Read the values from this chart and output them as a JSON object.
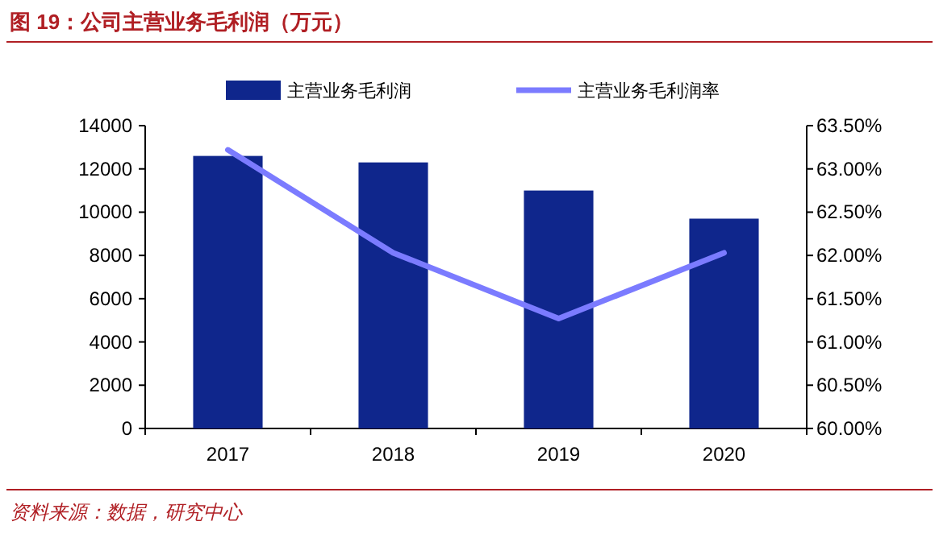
{
  "chart_data": {
    "type": "bar",
    "title": "图 19：公司主营业务毛利润（万元）",
    "categories": [
      "2017",
      "2018",
      "2019",
      "2020"
    ],
    "series": [
      {
        "name": "主营业务毛利润",
        "color": "#0f268c",
        "values": [
          12600,
          12300,
          11000,
          9700
        ]
      },
      {
        "name": "主营业务毛利润率",
        "type": "line",
        "axis": "y2",
        "color": "#7b7bff",
        "values": [
          63.22,
          62.03,
          61.27,
          62.03
        ]
      }
    ],
    "ylim": [
      0,
      14000
    ],
    "yticks": [
      0,
      2000,
      4000,
      6000,
      8000,
      10000,
      12000,
      14000
    ],
    "y2lim": [
      60,
      63.5
    ],
    "y2ticks": [
      {
        "value": 60,
        "label": "60.00%"
      },
      {
        "value": 60.5,
        "label": "60.50%"
      },
      {
        "value": 61,
        "label": "61.00%"
      },
      {
        "value": 61.5,
        "label": "61.50%"
      },
      {
        "value": 62,
        "label": "62.00%"
      },
      {
        "value": 62.5,
        "label": "62.50%"
      },
      {
        "value": 63,
        "label": "63.00%"
      },
      {
        "value": 63.5,
        "label": "63.50%"
      }
    ],
    "legend": "top",
    "grid": false,
    "annotations": [
      "资料来源：数据，研究中心"
    ]
  }
}
